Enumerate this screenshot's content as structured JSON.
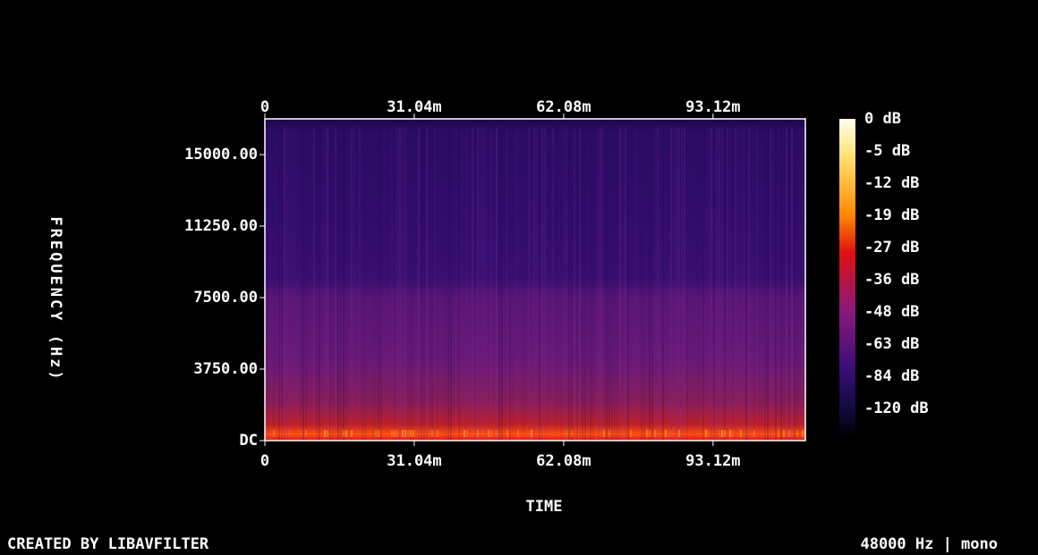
{
  "chart_data": {
    "type": "spectrogram",
    "x_label": "TIME",
    "y_label": "FREQUENCY (Hz)",
    "xlim": [
      0,
      112.3
    ],
    "xticks": [
      0,
      {
        "value": 31.04,
        "label": "31.04m"
      },
      {
        "value": 62.08,
        "label": "62.08m"
      },
      {
        "value": 93.12,
        "label": "93.12m"
      }
    ],
    "ylim": [
      0,
      16875
    ],
    "yticks": [
      {
        "value": 0,
        "label": "DC"
      },
      {
        "value": 3750,
        "label": "3750.00"
      },
      {
        "value": 7500,
        "label": "7500.00"
      },
      {
        "value": 11250,
        "label": "11250.00"
      },
      {
        "value": 15000,
        "label": "15000.00"
      }
    ],
    "colorbar_ticks": [
      {
        "value": 0,
        "label": "0 dB"
      },
      {
        "value": -5,
        "label": "-5 dB"
      },
      {
        "value": -12,
        "label": "-12 dB"
      },
      {
        "value": -19,
        "label": "-19 dB"
      },
      {
        "value": -27,
        "label": "-27 dB"
      },
      {
        "value": -36,
        "label": "-36 dB"
      },
      {
        "value": -48,
        "label": "-48 dB"
      },
      {
        "value": -63,
        "label": "-63 dB"
      },
      {
        "value": -84,
        "label": "-84 dB"
      },
      {
        "value": -120,
        "label": "-120 dB"
      }
    ],
    "footer_left": "CREATED BY LIBAVFILTER",
    "footer_right": "48000 Hz | mono"
  }
}
